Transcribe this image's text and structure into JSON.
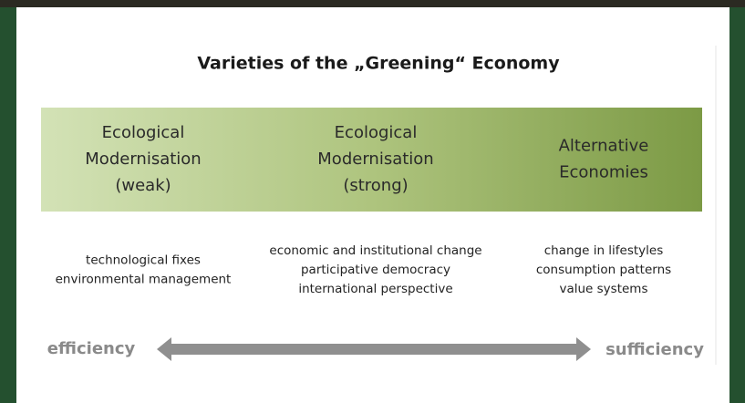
{
  "title": "Varieties of the „Greening“ Economy",
  "columns": [
    {
      "heading": [
        "Ecological",
        "Modernisation",
        "(weak)"
      ],
      "description": [
        "technological fixes",
        "environmental management"
      ]
    },
    {
      "heading": [
        "Ecological",
        "Modernisation",
        "(strong)"
      ],
      "description": [
        "economic and institutional change",
        "participative democracy",
        "international perspective"
      ]
    },
    {
      "heading": [
        "Alternative",
        "Economies"
      ],
      "description": [
        "change in lifestyles",
        "consumption patterns",
        "value systems"
      ]
    }
  ],
  "scale": {
    "left": "efficiency",
    "right": "sufficiency"
  }
}
